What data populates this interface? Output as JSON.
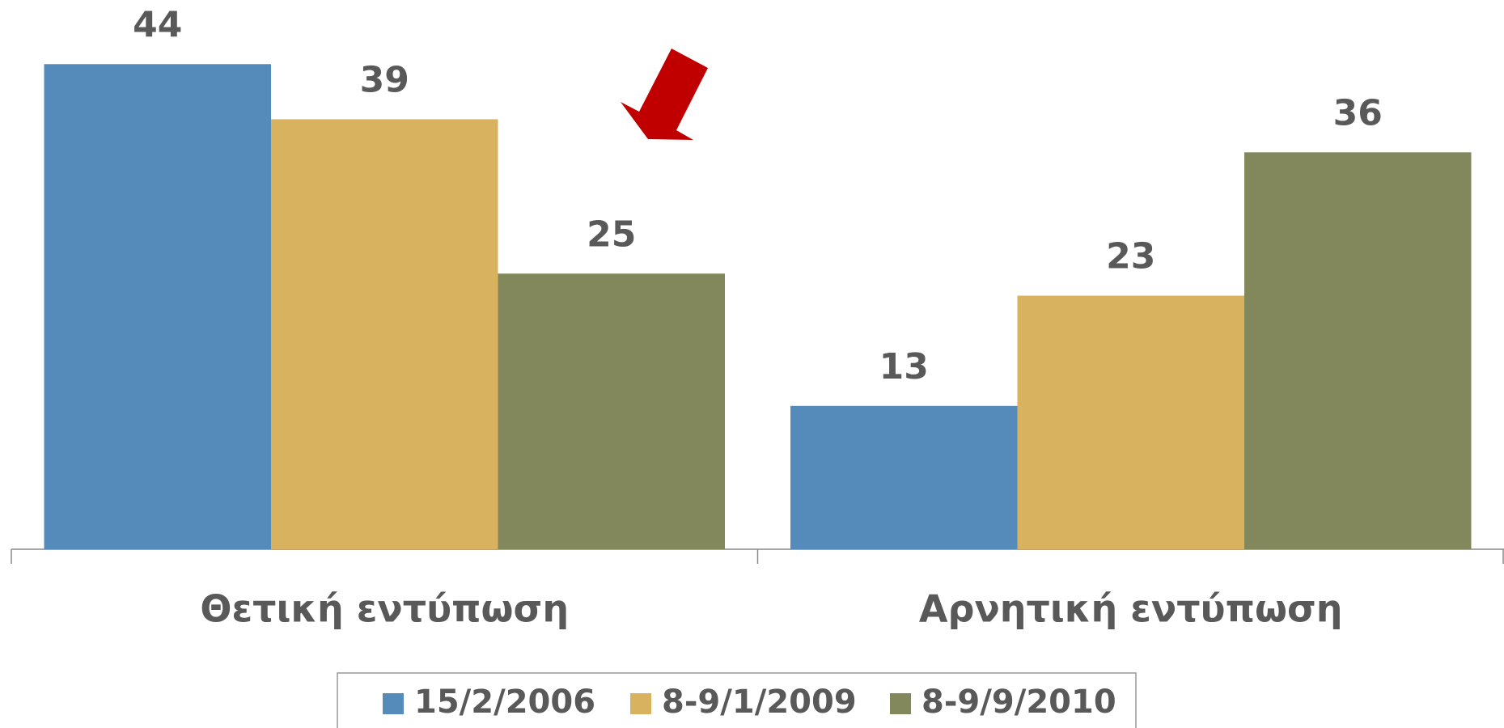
{
  "chart_data": {
    "type": "bar",
    "categories": [
      "Θετική εντύπωση",
      "Αρνητική εντύπωση"
    ],
    "series": [
      {
        "name": "15/2/2006",
        "color": "#558bba",
        "values": [
          44,
          13
        ]
      },
      {
        "name": "8-9/1/2009",
        "color": "#d8b25e",
        "values": [
          39,
          23
        ]
      },
      {
        "name": "8-9/9/2010",
        "color": "#82885b",
        "values": [
          25,
          36
        ]
      }
    ],
    "legend": "bottom"
  }
}
